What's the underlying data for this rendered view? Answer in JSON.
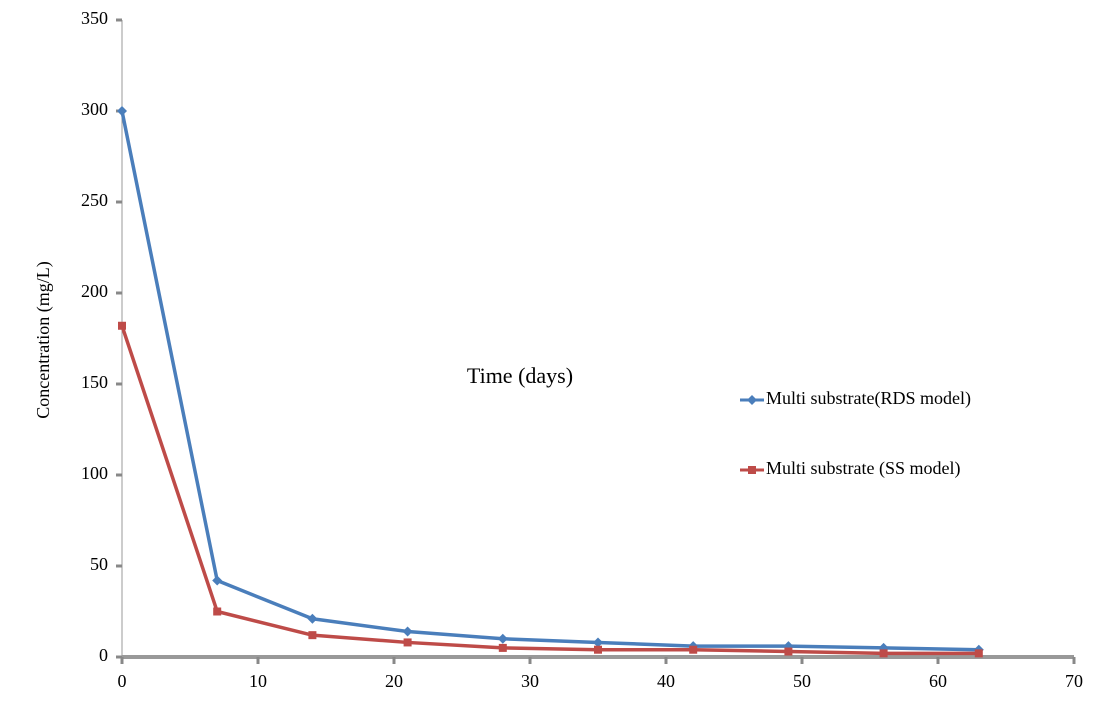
{
  "chart_data": {
    "type": "line",
    "xlabel": "Time (days)",
    "ylabel": "Concentration  (mg/L)",
    "x": [
      0,
      7,
      14,
      21,
      28,
      35,
      42,
      49,
      56,
      63
    ],
    "series": [
      {
        "name": "Multi substrate(RDS model)",
        "color": "#4a7ebb",
        "marker": "diamond",
        "values": [
          300,
          42,
          21,
          14,
          10,
          8,
          6,
          6,
          5,
          4
        ]
      },
      {
        "name": "Multi substrate (SS model)",
        "color": "#be4b48",
        "marker": "square",
        "values": [
          182,
          25,
          12,
          8,
          5,
          4,
          4,
          3,
          2,
          2
        ]
      }
    ],
    "xlim": [
      0,
      70
    ],
    "xticks": [
      0,
      10,
      20,
      30,
      40,
      50,
      60,
      70
    ],
    "ylim": [
      0,
      350
    ],
    "yticks": [
      0,
      50,
      100,
      150,
      200,
      250,
      300,
      350
    ],
    "grid": false,
    "legend": "center-right"
  }
}
